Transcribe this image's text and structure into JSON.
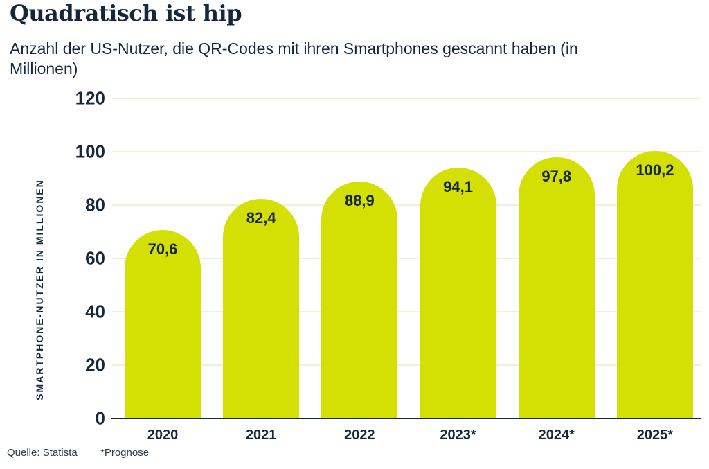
{
  "header": {
    "title": "Quadratisch ist hip",
    "subtitle": "Anzahl der US-Nutzer, die QR-Codes mit ihren Smartphones gescannt haben (in\nMillionen)"
  },
  "chart_data": {
    "type": "bar",
    "title": "Quadratisch ist hip",
    "subtitle": "Anzahl der US-Nutzer, die QR-Codes mit ihren Smartphones gescannt haben (in Millionen)",
    "categories": [
      "2020",
      "2021",
      "2022",
      "2023*",
      "2024*",
      "2025*"
    ],
    "values": [
      70.6,
      82.4,
      88.9,
      94.1,
      97.8,
      100.2
    ],
    "value_labels": [
      "70,6",
      "82,4",
      "88,9",
      "94,1",
      "97,8",
      "100,2"
    ],
    "xlabel": "",
    "ylabel": "SMARTPHONE-NUTZER IN MILLIONEN",
    "yticks": [
      0,
      20,
      40,
      60,
      80,
      100,
      120
    ],
    "ylim": [
      0,
      120
    ],
    "grid": true,
    "legend": false,
    "bar_color": "#d4e004",
    "grid_color": "#f1eedb",
    "axis_color": "#14273d",
    "text_color": "#14273d",
    "background_color": "#ffffff"
  },
  "footer": {
    "source": "Quelle: Statista",
    "note": "*Prognose"
  }
}
